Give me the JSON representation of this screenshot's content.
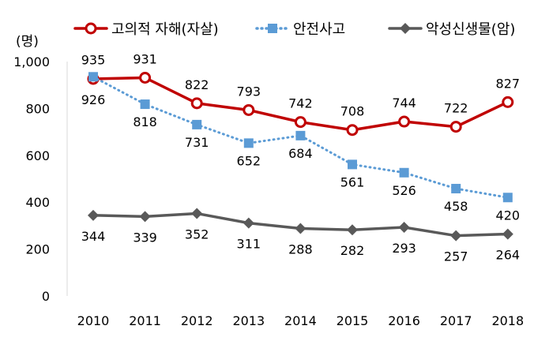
{
  "chart_data": {
    "type": "line",
    "ylabel": "(명)",
    "ylim": [
      0,
      1000
    ],
    "yticks": [
      "0",
      "200",
      "400",
      "600",
      "800",
      "1,000"
    ],
    "ytick_values": [
      0,
      200,
      400,
      600,
      800,
      1000
    ],
    "categories": [
      "2010",
      "2011",
      "2012",
      "2013",
      "2014",
      "2015",
      "2016",
      "2017",
      "2018"
    ],
    "legend_position": "top",
    "grid": false,
    "series": [
      {
        "name": "고의적 자해(자살)",
        "values": [
          926,
          931,
          822,
          793,
          742,
          708,
          744,
          722,
          827
        ],
        "color": "#C00000",
        "marker": "circle",
        "style": "solid"
      },
      {
        "name": "안전사고",
        "values": [
          935,
          818,
          731,
          652,
          684,
          561,
          526,
          458,
          420
        ],
        "color": "#5B9BD5",
        "marker": "square",
        "style": "dotted"
      },
      {
        "name": "악성신생물(암)",
        "values": [
          344,
          339,
          352,
          311,
          288,
          282,
          293,
          257,
          264
        ],
        "color": "#595959",
        "marker": "diamond",
        "style": "solid"
      }
    ]
  }
}
